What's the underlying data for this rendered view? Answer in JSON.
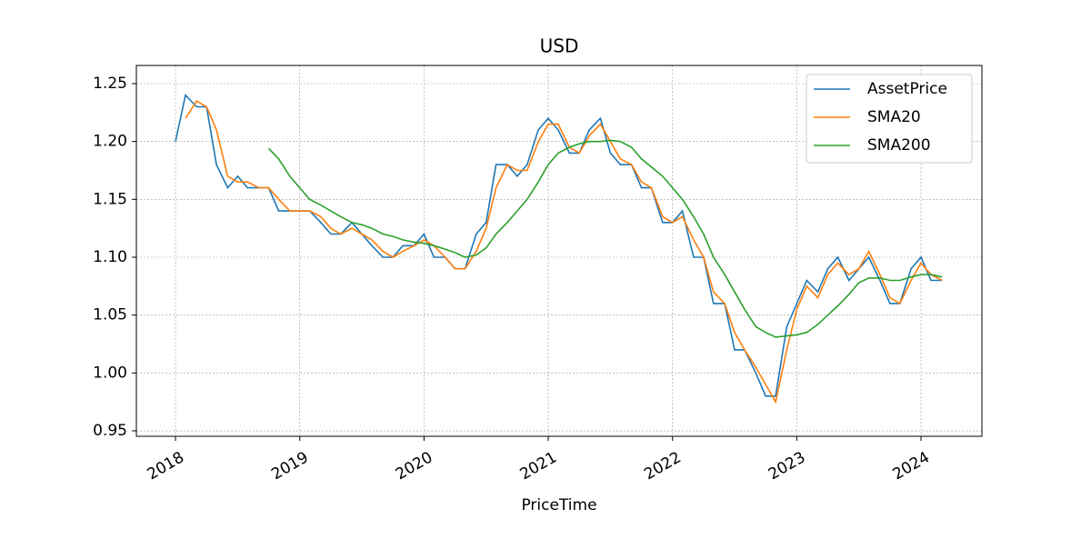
{
  "chart_data": {
    "type": "line",
    "title": "USD",
    "x_label": "PriceTime",
    "x": [
      2018.0,
      2018.08,
      2018.17,
      2018.25,
      2018.33,
      2018.42,
      2018.5,
      2018.58,
      2018.67,
      2018.75,
      2018.83,
      2018.92,
      2019.0,
      2019.08,
      2019.17,
      2019.25,
      2019.33,
      2019.42,
      2019.5,
      2019.58,
      2019.67,
      2019.75,
      2019.83,
      2019.92,
      2020.0,
      2020.08,
      2020.17,
      2020.25,
      2020.33,
      2020.42,
      2020.5,
      2020.58,
      2020.67,
      2020.75,
      2020.83,
      2020.92,
      2021.0,
      2021.08,
      2021.17,
      2021.25,
      2021.33,
      2021.42,
      2021.5,
      2021.58,
      2021.67,
      2021.75,
      2021.83,
      2021.92,
      2022.0,
      2022.08,
      2022.17,
      2022.25,
      2022.33,
      2022.42,
      2022.5,
      2022.58,
      2022.67,
      2022.75,
      2022.83,
      2022.92,
      2023.0,
      2023.08,
      2023.17,
      2023.25,
      2023.33,
      2023.42,
      2023.5,
      2023.58,
      2023.67,
      2023.75,
      2023.83,
      2023.92,
      2024.0,
      2024.08,
      2024.17
    ],
    "series": [
      {
        "name": "AssetPrice",
        "color": "#1f77b4",
        "values": [
          1.2,
          1.24,
          1.23,
          1.23,
          1.18,
          1.16,
          1.17,
          1.16,
          1.16,
          1.16,
          1.14,
          1.14,
          1.14,
          1.14,
          1.13,
          1.12,
          1.12,
          1.13,
          1.12,
          1.11,
          1.1,
          1.1,
          1.11,
          1.11,
          1.12,
          1.1,
          1.1,
          1.09,
          1.09,
          1.12,
          1.13,
          1.18,
          1.18,
          1.17,
          1.18,
          1.21,
          1.22,
          1.21,
          1.19,
          1.19,
          1.21,
          1.22,
          1.19,
          1.18,
          1.18,
          1.16,
          1.16,
          1.13,
          1.13,
          1.14,
          1.1,
          1.1,
          1.06,
          1.06,
          1.02,
          1.02,
          1.0,
          0.98,
          0.98,
          1.04,
          1.06,
          1.08,
          1.07,
          1.09,
          1.1,
          1.08,
          1.09,
          1.1,
          1.08,
          1.06,
          1.06,
          1.09,
          1.1,
          1.08,
          1.08
        ]
      },
      {
        "name": "SMA20",
        "color": "#ff7f0e",
        "values": [
          null,
          1.22,
          1.235,
          1.23,
          1.21,
          1.17,
          1.165,
          1.165,
          1.16,
          1.16,
          1.15,
          1.14,
          1.14,
          1.14,
          1.135,
          1.125,
          1.12,
          1.125,
          1.12,
          1.115,
          1.105,
          1.1,
          1.105,
          1.11,
          1.115,
          1.11,
          1.1,
          1.09,
          1.09,
          1.105,
          1.125,
          1.16,
          1.18,
          1.175,
          1.175,
          1.2,
          1.215,
          1.215,
          1.195,
          1.19,
          1.205,
          1.215,
          1.2,
          1.185,
          1.18,
          1.165,
          1.16,
          1.135,
          1.13,
          1.135,
          1.115,
          1.1,
          1.07,
          1.06,
          1.035,
          1.02,
          1.005,
          0.99,
          0.975,
          1.02,
          1.055,
          1.075,
          1.065,
          1.085,
          1.095,
          1.085,
          1.09,
          1.105,
          1.085,
          1.065,
          1.06,
          1.08,
          1.095,
          1.085,
          1.08
        ]
      },
      {
        "name": "SMA200",
        "color": "#2ca02c",
        "values": [
          null,
          null,
          null,
          null,
          null,
          null,
          null,
          null,
          null,
          1.194,
          1.185,
          1.17,
          1.16,
          1.15,
          1.145,
          1.14,
          1.135,
          1.13,
          1.128,
          1.125,
          1.12,
          1.118,
          1.115,
          1.113,
          1.112,
          1.11,
          1.107,
          1.104,
          1.1,
          1.102,
          1.108,
          1.12,
          1.13,
          1.14,
          1.15,
          1.165,
          1.18,
          1.19,
          1.195,
          1.198,
          1.2,
          1.2,
          1.201,
          1.2,
          1.195,
          1.185,
          1.178,
          1.17,
          1.16,
          1.15,
          1.135,
          1.12,
          1.1,
          1.085,
          1.07,
          1.055,
          1.04,
          1.035,
          1.031,
          1.032,
          1.033,
          1.035,
          1.042,
          1.05,
          1.058,
          1.068,
          1.078,
          1.082,
          1.082,
          1.08,
          1.08,
          1.083,
          1.085,
          1.085,
          1.083
        ]
      }
    ],
    "xlim": [
      2017.685,
      2024.49
    ],
    "xticks": [
      2018,
      2019,
      2020,
      2021,
      2022,
      2023,
      2024
    ],
    "ylim": [
      0.9453,
      1.2657
    ],
    "yticks": [
      0.95,
      {
        "value": 1,
        "label": "1.00"
      },
      1.05,
      {
        "value": 1.1,
        "label": "1.10"
      },
      1.15,
      {
        "value": 1.2,
        "label": "1.20"
      },
      1.25
    ],
    "grid": true,
    "legend": "upper right"
  }
}
